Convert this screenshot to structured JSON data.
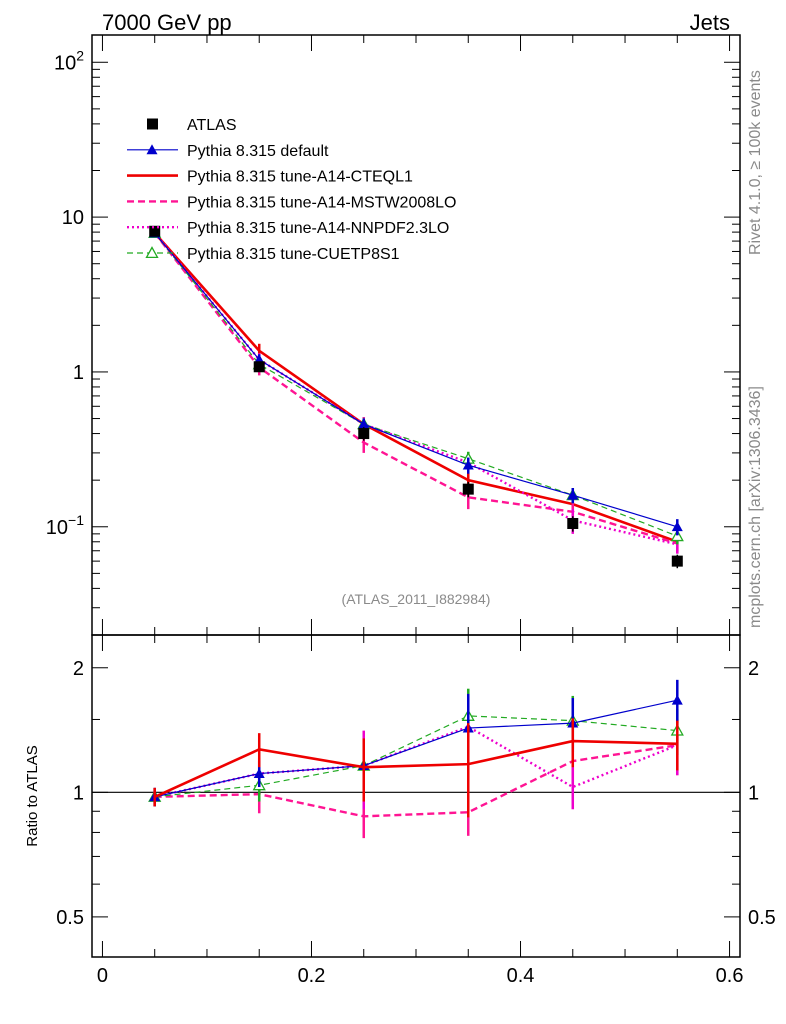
{
  "header": {
    "left": "7000 GeV pp",
    "right": "Jets"
  },
  "side": {
    "rivet": "Rivet 4.1.0, ≥ 100k events",
    "mcplots": "mcplots.cern.ch [arXiv:1306.3436]"
  },
  "analysis_id": "(ATLAS_2011_I882984)",
  "chart_data": [
    {
      "type": "line",
      "panel": "main",
      "yscale": "log",
      "ylim": [
        0.02,
        150
      ],
      "xlim": [
        -0.01,
        0.61
      ],
      "y_tick_labels": [
        "10^2",
        "10",
        "1",
        "10^-1"
      ],
      "x": [
        0.05,
        0.15,
        0.25,
        0.35,
        0.45,
        0.55
      ],
      "legend_position": "top-left",
      "series": [
        {
          "name": "ATLAS",
          "style": "data",
          "color": "#000000",
          "values": [
            8.1,
            1.08,
            0.4,
            0.175,
            0.105,
            0.06
          ],
          "errors": [
            0.25,
            0.08,
            0.04,
            0.02,
            0.012,
            0.006
          ]
        },
        {
          "name": "Pythia 8.315 default",
          "style": "solid-thin",
          "marker": "filled-triangle",
          "color": "#0000cc",
          "values": [
            7.9,
            1.2,
            0.46,
            0.25,
            0.16,
            0.1
          ],
          "errors": [
            0.3,
            0.1,
            0.04,
            0.03,
            0.018,
            0.012
          ]
        },
        {
          "name": "Pythia 8.315 tune-A14-CTEQL1",
          "style": "solid-thick",
          "marker": "none",
          "color": "#ee0000",
          "values": [
            7.9,
            1.37,
            0.46,
            0.2,
            0.14,
            0.08
          ],
          "errors": [
            0.3,
            0.15,
            0.05,
            0.03,
            0.02,
            0.01
          ]
        },
        {
          "name": "Pythia 8.315 tune-A14-MSTW2008LO",
          "style": "dashed",
          "marker": "none",
          "color": "#ff1493",
          "values": [
            7.9,
            1.07,
            0.35,
            0.155,
            0.125,
            0.078
          ],
          "errors": [
            0.3,
            0.12,
            0.05,
            0.025,
            0.02,
            0.01
          ]
        },
        {
          "name": "Pythia 8.315 tune-A14-NNPDF2.3LO",
          "style": "dotted",
          "marker": "none",
          "color": "#ee00cc",
          "values": [
            7.9,
            1.2,
            0.46,
            0.26,
            0.11,
            0.077
          ],
          "errors": [
            0.3,
            0.12,
            0.05,
            0.03,
            0.02,
            0.01
          ]
        },
        {
          "name": "Pythia 8.315 tune-CUETP8S1",
          "style": "dashed-thin",
          "marker": "open-triangle",
          "color": "#22aa22",
          "values": [
            7.9,
            1.12,
            0.46,
            0.275,
            0.16,
            0.087
          ],
          "errors": [
            0.3,
            0.1,
            0.04,
            0.03,
            0.018,
            0.01
          ]
        }
      ]
    },
    {
      "type": "line",
      "panel": "ratio",
      "ylabel": "Ratio to ATLAS",
      "yscale": "log",
      "ylim": [
        0.4,
        2.4
      ],
      "xlim": [
        -0.01,
        0.61
      ],
      "y_tick_labels": [
        "2",
        "1",
        "0.5"
      ],
      "x_tick_labels": [
        "0",
        "0.2",
        "0.4",
        "0.6"
      ],
      "x": [
        0.05,
        0.15,
        0.25,
        0.35,
        0.45,
        0.55
      ],
      "reference_line": 1,
      "series": [
        {
          "name": "Pythia 8.315 default",
          "color": "#0000cc",
          "values": [
            0.975,
            1.11,
            1.16,
            1.43,
            1.47,
            1.67
          ],
          "errors": [
            0.05,
            0.08,
            0.18,
            0.3,
            0.22,
            0.2
          ]
        },
        {
          "name": "Pythia 8.315 tune-A14-CTEQL1",
          "color": "#ee0000",
          "values": [
            0.975,
            1.27,
            1.15,
            1.17,
            1.33,
            1.31
          ],
          "errors": [
            0.05,
            0.12,
            0.2,
            0.3,
            0.18,
            0.18
          ]
        },
        {
          "name": "Pythia 8.315 tune-A14-MSTW2008LO",
          "color": "#ff1493",
          "values": [
            0.975,
            0.99,
            0.875,
            0.895,
            1.19,
            1.3
          ],
          "errors": [
            0.05,
            0.1,
            0.1,
            0.11,
            0.16,
            0.2
          ]
        },
        {
          "name": "Pythia 8.315 tune-A14-NNPDF2.3LO",
          "color": "#ee00cc",
          "values": [
            0.975,
            1.11,
            1.16,
            1.44,
            1.03,
            1.3
          ],
          "errors": [
            0.05,
            0.1,
            0.25,
            0.28,
            0.12,
            0.2
          ]
        },
        {
          "name": "Pythia 8.315 tune-CUETP8S1",
          "color": "#22aa22",
          "values": [
            0.975,
            1.04,
            1.16,
            1.53,
            1.49,
            1.41
          ],
          "errors": [
            0.05,
            0.09,
            0.18,
            0.25,
            0.22,
            0.18
          ]
        }
      ]
    }
  ]
}
